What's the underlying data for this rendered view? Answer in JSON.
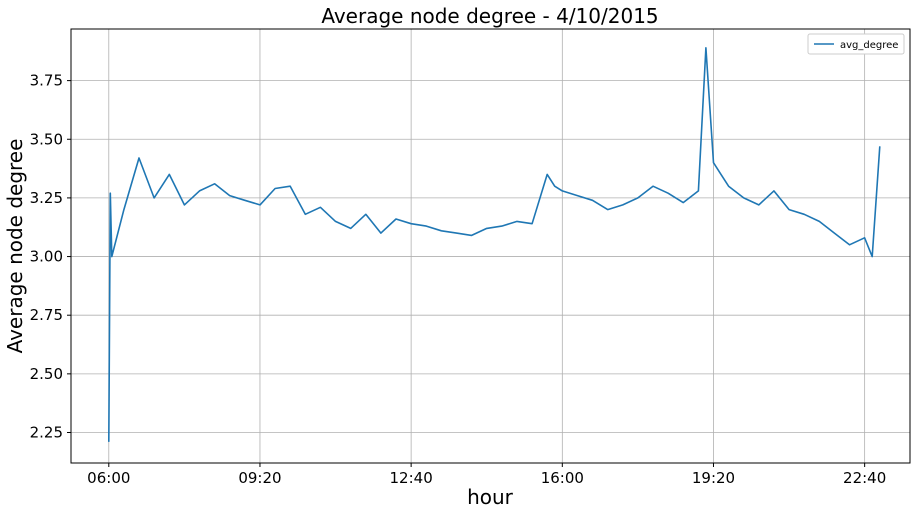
{
  "chart_data": {
    "type": "line",
    "title": "Average node degree - 4/10/2015",
    "xlabel": "hour",
    "ylabel": "Average node degree",
    "x_ticks": [
      "06:00",
      "09:20",
      "12:40",
      "16:00",
      "19:20",
      "22:40"
    ],
    "y_ticks": [
      "2.25",
      "2.50",
      "2.75",
      "3.00",
      "3.25",
      "3.50",
      "3.75"
    ],
    "xlim": [
      "05:10",
      "23:40"
    ],
    "ylim": [
      2.12,
      3.97
    ],
    "grid": true,
    "legend_position": "top-right",
    "colors": {
      "series": "#1f77b4",
      "grid": "#b0b0b0",
      "axes": "#000000"
    },
    "series": [
      {
        "name": "avg_degree",
        "x": [
          "06:00",
          "06:02",
          "06:04",
          "06:20",
          "06:40",
          "07:00",
          "07:20",
          "07:40",
          "08:00",
          "08:20",
          "08:40",
          "09:00",
          "09:20",
          "09:40",
          "10:00",
          "10:20",
          "10:40",
          "11:00",
          "11:20",
          "11:40",
          "12:00",
          "12:20",
          "12:40",
          "13:00",
          "13:20",
          "13:40",
          "14:00",
          "14:20",
          "14:40",
          "15:00",
          "15:20",
          "15:40",
          "15:50",
          "16:00",
          "16:20",
          "16:40",
          "17:00",
          "17:20",
          "17:40",
          "18:00",
          "18:20",
          "18:40",
          "19:00",
          "19:10",
          "19:20",
          "19:30",
          "19:40",
          "20:00",
          "20:20",
          "20:40",
          "21:00",
          "21:20",
          "21:40",
          "22:00",
          "22:20",
          "22:40",
          "22:50",
          "23:00"
        ],
        "values": [
          2.21,
          3.27,
          3.0,
          3.2,
          3.42,
          3.25,
          3.35,
          3.22,
          3.28,
          3.31,
          3.26,
          3.24,
          3.22,
          3.29,
          3.3,
          3.18,
          3.21,
          3.15,
          3.12,
          3.18,
          3.1,
          3.16,
          3.14,
          3.13,
          3.11,
          3.1,
          3.09,
          3.12,
          3.13,
          3.15,
          3.14,
          3.35,
          3.3,
          3.28,
          3.26,
          3.24,
          3.2,
          3.22,
          3.25,
          3.3,
          3.27,
          3.23,
          3.28,
          3.89,
          3.4,
          3.35,
          3.3,
          3.25,
          3.22,
          3.28,
          3.2,
          3.18,
          3.15,
          3.1,
          3.05,
          3.08,
          3.0,
          3.47
        ]
      }
    ]
  }
}
